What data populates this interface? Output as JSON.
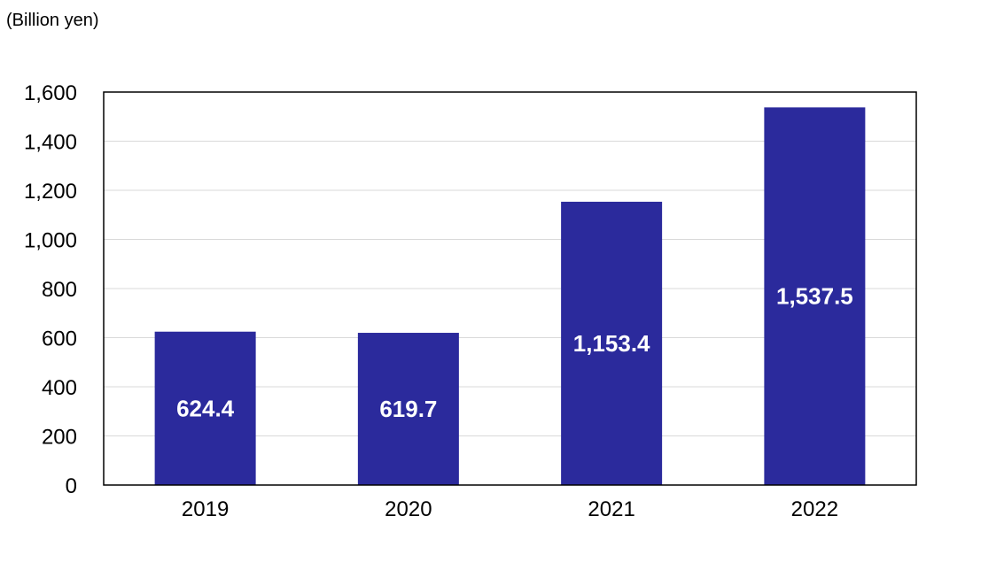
{
  "chart_data": {
    "type": "bar",
    "unit_label": "(Billion yen)",
    "categories": [
      "2019",
      "2020",
      "2021",
      "2022"
    ],
    "values": [
      624.4,
      619.7,
      1153.4,
      1537.5
    ],
    "value_labels": [
      "624.4",
      "619.7",
      "1,153.4",
      "1,537.5"
    ],
    "ylim": [
      0,
      1600
    ],
    "y_ticks": [
      0,
      200,
      400,
      600,
      800,
      1000,
      1200,
      1400,
      1600
    ],
    "y_tick_labels": [
      "0",
      "200",
      "400",
      "600",
      "800",
      "1,000",
      "1,200",
      "1,400",
      "1,600"
    ],
    "grid": true,
    "bar_color": "#2B2A9C",
    "grid_color": "#D9D9D9"
  }
}
